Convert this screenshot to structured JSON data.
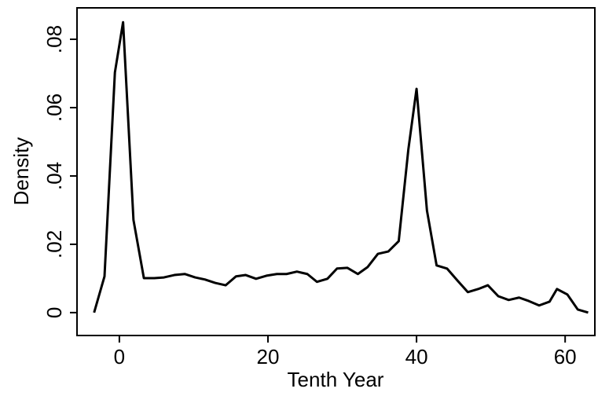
{
  "chart_data": {
    "type": "line",
    "x_label": "Tenth Year",
    "y_label": "Density",
    "x": [
      -3.4,
      -2.0,
      -0.6,
      0.5,
      1.9,
      3.3,
      4.7,
      6.0,
      7.4,
      8.8,
      10.2,
      11.5,
      12.9,
      14.3,
      15.7,
      17.0,
      18.4,
      19.8,
      21.2,
      22.5,
      23.9,
      25.3,
      26.6,
      28.0,
      29.3,
      30.7,
      32.1,
      33.4,
      34.8,
      36.2,
      37.6,
      38.9,
      40.0,
      41.4,
      42.7,
      44.1,
      45.5,
      46.9,
      48.3,
      49.6,
      51.0,
      52.4,
      53.8,
      55.1,
      56.5,
      57.9,
      58.9,
      60.3,
      61.7,
      63.1
    ],
    "series": [
      {
        "name": "Density",
        "color": "#000000",
        "values": [
          0,
          0.0106,
          0.0703,
          0.085,
          0.0271,
          0.0101,
          0.0101,
          0.0103,
          0.011,
          0.0113,
          0.0103,
          0.0097,
          0.0087,
          0.008,
          0.0106,
          0.011,
          0.0099,
          0.0108,
          0.0113,
          0.0113,
          0.012,
          0.0113,
          0.009,
          0.0099,
          0.0129,
          0.0131,
          0.0113,
          0.0133,
          0.0172,
          0.0179,
          0.0209,
          0.0478,
          0.0655,
          0.0299,
          0.0138,
          0.0129,
          0.0094,
          0.006,
          0.0069,
          0.008,
          0.0048,
          0.0037,
          0.0044,
          0.0034,
          0.0021,
          0.0032,
          0.0069,
          0.0053,
          0.0009,
          0
        ]
      }
    ],
    "xlim": [
      -5.7,
      64.0
    ],
    "xticks": [
      0,
      20,
      40,
      60
    ],
    "ylim": [
      -0.0067,
      0.0892
    ],
    "yticks": [
      0,
      {
        "value": 0.02,
        "label": ".02"
      },
      {
        "value": 0.04,
        "label": ".04"
      },
      {
        "value": 0.06,
        "label": ".06"
      },
      {
        "value": 0.08,
        "label": ".08"
      }
    ]
  }
}
